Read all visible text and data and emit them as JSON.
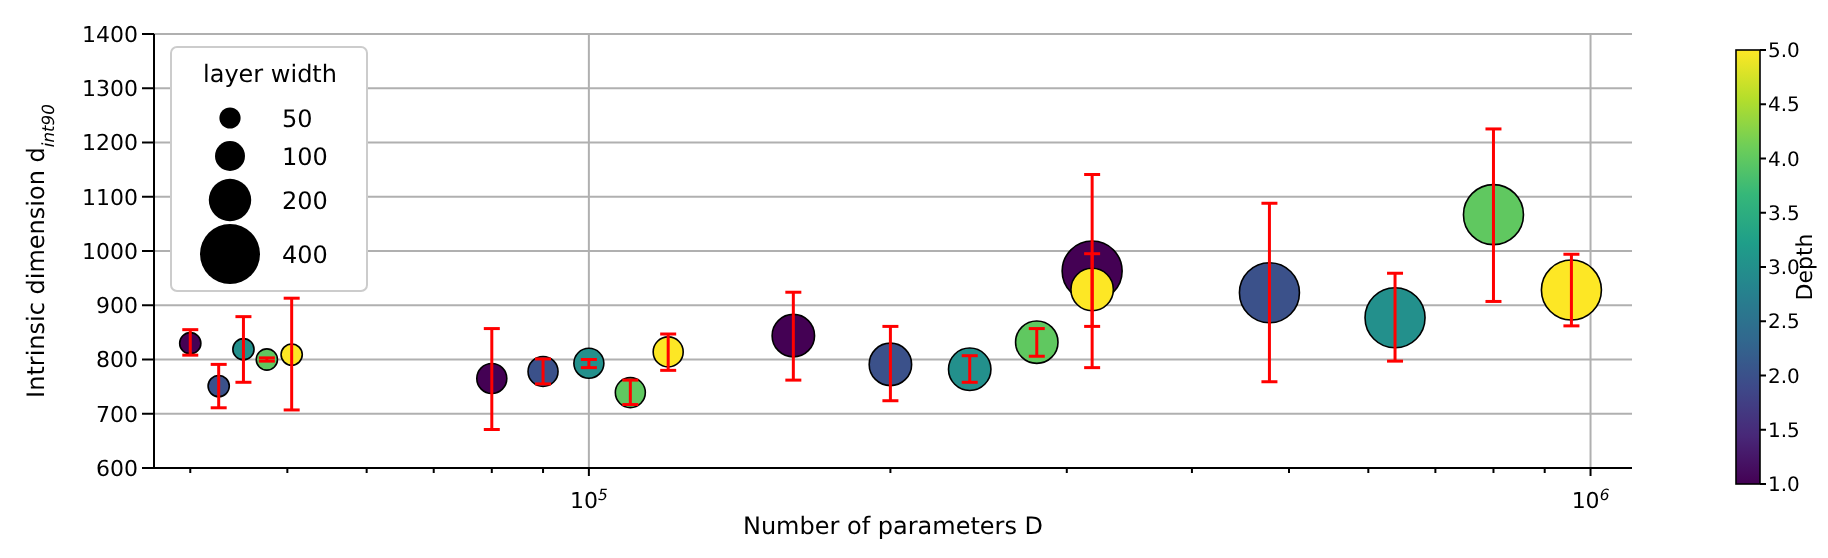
{
  "chart_data": {
    "type": "bubble",
    "xlabel": "Number of parameters D",
    "ylabel": "Intrinsic dimension d$_{int90}$",
    "clabel": "Depth",
    "legend_title": "layer width",
    "x": [
      40000,
      42700,
      45200,
      47700,
      50500,
      80000,
      90000,
      100000,
      110000,
      120000,
      160000,
      200000,
      240000,
      280000,
      318000,
      318000,
      478000,
      638000,
      800000,
      957000
    ],
    "values": [
      830,
      751,
      819,
      800,
      809,
      765,
      778,
      793,
      739,
      814,
      844,
      791,
      782,
      832,
      963,
      929,
      923,
      877,
      1067,
      928
    ],
    "errors": [
      [
        808,
        855
      ],
      [
        711,
        791
      ],
      [
        758,
        879
      ],
      [
        797,
        803
      ],
      [
        707,
        913
      ],
      [
        671,
        857
      ],
      [
        755,
        801
      ],
      [
        785,
        800
      ],
      [
        717,
        762
      ],
      [
        780,
        847
      ],
      [
        762,
        924
      ],
      [
        724,
        861
      ],
      [
        758,
        807
      ],
      [
        806,
        857
      ],
      [
        785,
        1141
      ],
      [
        861,
        995
      ],
      [
        759,
        1088
      ],
      [
        797,
        959
      ],
      [
        907,
        1225
      ],
      [
        862,
        994
      ]
    ],
    "sizes": [
      50,
      50,
      50,
      50,
      50,
      100,
      100,
      100,
      100,
      100,
      200,
      200,
      200,
      200,
      400,
      200,
      400,
      400,
      400,
      400
    ],
    "size_legend": [
      50,
      100,
      200,
      400
    ],
    "cvalues": [
      1,
      2,
      3,
      4,
      5,
      1,
      2,
      3,
      4,
      5,
      1,
      2,
      3,
      4,
      1,
      5,
      2,
      3,
      4,
      5
    ],
    "clim": [
      1,
      5
    ],
    "cticks": [
      {
        "value": 1,
        "label": "1.0"
      },
      {
        "value": 1.5,
        "label": "1.5"
      },
      {
        "value": 2,
        "label": "2.0"
      },
      {
        "value": 2.5,
        "label": "2.5"
      },
      {
        "value": 3,
        "label": "3.0"
      },
      {
        "value": 3.5,
        "label": "3.5"
      },
      {
        "value": 4,
        "label": "4.0"
      },
      {
        "value": 4.5,
        "label": "4.5"
      },
      {
        "value": 5,
        "label": "5.0"
      }
    ],
    "log": "x",
    "xlim": [
      36800,
      1100000
    ],
    "xticks": [
      {
        "value": 40000,
        "label": null
      },
      {
        "value": 50000,
        "label": null
      },
      {
        "value": 60000,
        "label": null
      },
      {
        "value": 70000,
        "label": null
      },
      {
        "value": 80000,
        "label": null
      },
      {
        "value": 90000,
        "label": null
      },
      {
        "value": 100000,
        "label": "10$^{5}$"
      },
      {
        "value": 200000,
        "label": null
      },
      {
        "value": 300000,
        "label": null
      },
      {
        "value": 400000,
        "label": null
      },
      {
        "value": 500000,
        "label": null
      },
      {
        "value": 600000,
        "label": null
      },
      {
        "value": 700000,
        "label": null
      },
      {
        "value": 800000,
        "label": null
      },
      {
        "value": 900000,
        "label": null
      },
      {
        "value": 1000000,
        "label": "10$^{6}$"
      }
    ],
    "ylim": [
      600,
      1400
    ],
    "yticks": [
      600,
      700,
      800,
      900,
      1000,
      1100,
      1200,
      1300,
      1400
    ],
    "grid": true,
    "marker": "circle"
  }
}
